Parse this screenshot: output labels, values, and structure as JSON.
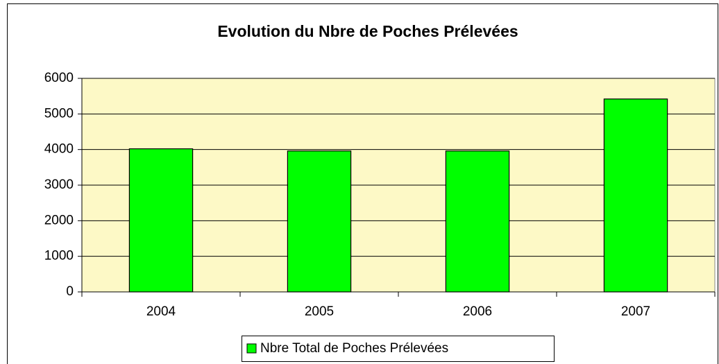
{
  "chart_data": {
    "type": "bar",
    "title": "Evolution du Nbre de Poches Prélevées",
    "categories": [
      "2004",
      "2005",
      "2006",
      "2007"
    ],
    "series": [
      {
        "name": "Nbre Total de Poches Prélevées",
        "color": "#00ff00",
        "values": [
          4020,
          3960,
          3960,
          5420
        ]
      }
    ],
    "ylim": [
      0,
      6000
    ],
    "yticks": [
      0,
      1000,
      2000,
      3000,
      4000,
      5000,
      6000
    ],
    "grid": true,
    "legend": "bottom"
  }
}
